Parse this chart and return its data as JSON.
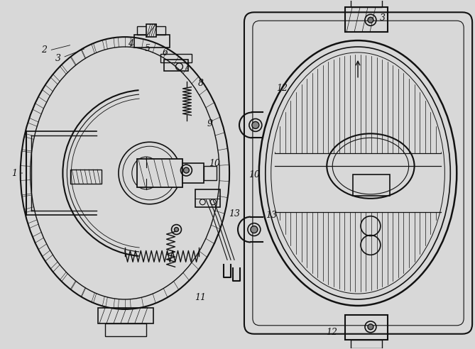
{
  "bg_color": "#d8d8d8",
  "line_color": "#111111",
  "fig_width": 6.69,
  "fig_height": 4.92,
  "dpi": 100
}
